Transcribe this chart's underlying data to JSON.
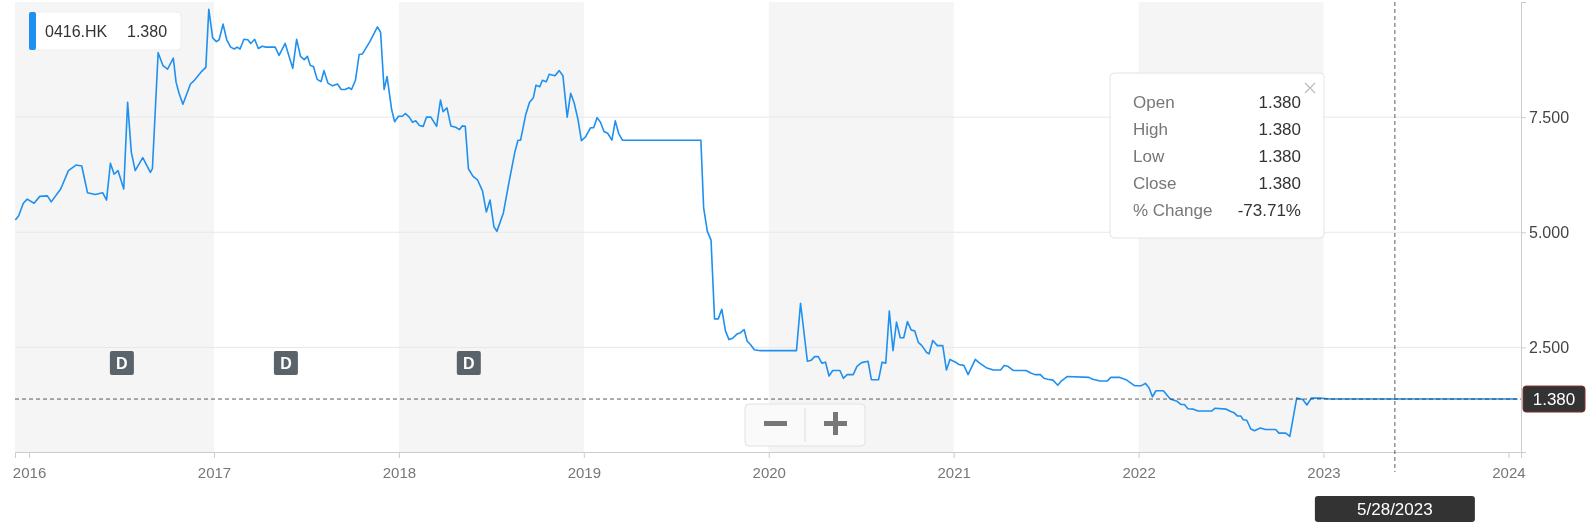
{
  "chart_data": {
    "type": "line",
    "xlim": [
      2015.924,
      2024.068
    ],
    "xticks": [
      2016,
      2017,
      2018,
      2019,
      2020,
      2021,
      2022,
      2023,
      2024
    ],
    "ylim": [
      0.23,
      10.0
    ],
    "yticks": [
      {
        "value": 2.5,
        "label": "2.500"
      },
      {
        "value": 5,
        "label": "5.000"
      },
      {
        "value": 7.5,
        "label": "7.500"
      }
    ],
    "grid": "y",
    "legend": "top left",
    "marker": "none",
    "line_style": "solid",
    "series": [
      {
        "name": "0416.HK",
        "color": "#1e90f0",
        "x": [
          2015.928,
          2015.944,
          2015.969,
          2015.99,
          2016.027,
          2016.058,
          2016.099,
          2016.12,
          2016.171,
          2016.213,
          2016.254,
          2016.285,
          2016.316,
          2016.357,
          2016.398,
          2016.419,
          2016.44,
          2016.46,
          2016.481,
          2016.512,
          2016.533,
          2016.553,
          2016.574,
          2016.615,
          2016.656,
          2016.667,
          2016.698,
          2016.724,
          2016.749,
          2016.78,
          2016.795,
          2016.811,
          2016.832,
          2016.873,
          2016.894,
          2016.935,
          2016.956,
          2016.972,
          2016.993,
          2017.013,
          2017.028,
          2017.049,
          2017.069,
          2017.09,
          2017.11,
          2017.125,
          2017.141,
          2017.162,
          2017.183,
          2017.199,
          2017.22,
          2017.24,
          2017.261,
          2017.282,
          2017.331,
          2017.352,
          2017.385,
          2017.406,
          2017.426,
          2017.447,
          2017.468,
          2017.488,
          2017.505,
          2017.521,
          2017.538,
          2017.558,
          2017.579,
          2017.595,
          2017.616,
          2017.641,
          2017.668,
          2017.688,
          2017.709,
          2017.73,
          2017.744,
          2017.765,
          2017.785,
          2017.802,
          2017.843,
          2017.884,
          2017.901,
          2017.92,
          2017.936,
          2017.961,
          2017.977,
          2017.998,
          2018.019,
          2018.035,
          2018.056,
          2018.074,
          2018.091,
          2018.111,
          2018.132,
          2018.149,
          2018.173,
          2018.204,
          2018.225,
          2018.239,
          2018.26,
          2018.281,
          2018.307,
          2018.328,
          2018.343,
          2018.359,
          2018.376,
          2018.4,
          2018.425,
          2018.452,
          2018.473,
          2018.493,
          2018.514,
          2018.53,
          2018.565,
          2018.596,
          2018.627,
          2018.644,
          2018.658,
          2018.685,
          2018.706,
          2018.727,
          2018.741,
          2018.762,
          2018.776,
          2018.797,
          2018.813,
          2018.844,
          2018.867,
          2018.887,
          2018.91,
          2018.929,
          2018.947,
          2018.968,
          2018.987,
          2019.009,
          2019.037,
          2019.053,
          2019.072,
          2019.09,
          2019.109,
          2019.129,
          2019.152,
          2019.17,
          2019.188,
          2019.209,
          2019.633,
          2019.648,
          2019.668,
          2019.688,
          2019.707,
          2019.727,
          2019.746,
          2019.766,
          2019.785,
          2019.805,
          2019.828,
          2019.848,
          2019.867,
          2019.883,
          2019.902,
          2019.922,
          2019.955,
          2020.15,
          2020.172,
          2020.209,
          2020.229,
          2020.248,
          2020.268,
          2020.287,
          2020.307,
          2020.326,
          2020.346,
          2020.385,
          2020.404,
          2020.424,
          2020.457,
          2020.477,
          2020.502,
          2020.537,
          2020.555,
          2020.594,
          2020.613,
          2020.633,
          2020.652,
          2020.672,
          2020.691,
          2020.711,
          2020.73,
          2020.75,
          2020.77,
          2020.789,
          2020.809,
          2020.828,
          2020.854,
          2020.867,
          2020.887,
          2020.912,
          2020.941,
          2020.961,
          2020.98,
          2021.01,
          2021.029,
          2021.055,
          2021.078,
          2021.117,
          2021.137,
          2021.176,
          2021.215,
          2021.254,
          2021.273,
          2021.293,
          2021.322,
          2021.391,
          2021.42,
          2021.439,
          2021.469,
          2021.488,
          2021.508,
          2021.537,
          2021.563,
          2021.582,
          2021.615,
          2021.732,
          2021.752,
          2021.791,
          2021.83,
          2021.85,
          2021.898,
          2021.932,
          2021.978,
          2022.015,
          2022.037,
          2022.057,
          2022.075,
          2022.094,
          2022.134,
          2022.171,
          2022.208,
          2022.23,
          2022.248,
          2022.267,
          2022.296,
          2022.322,
          2022.395,
          2022.414,
          2022.474,
          2022.498,
          2022.517,
          2022.535,
          2022.553,
          2022.566,
          2022.585,
          2022.607,
          2022.627,
          2022.658,
          2022.686,
          2022.741,
          2022.759,
          2022.796,
          2022.818,
          2022.855,
          2022.888,
          2022.91,
          2022.934,
          2022.98,
          2023.035,
          2024.046
        ],
        "values": [
          5.28,
          5.36,
          5.63,
          5.72,
          5.63,
          5.78,
          5.79,
          5.66,
          5.94,
          6.34,
          6.46,
          6.44,
          5.86,
          5.82,
          5.86,
          5.7,
          6.5,
          6.26,
          6.34,
          5.94,
          7.82,
          6.74,
          6.34,
          6.62,
          6.3,
          6.38,
          8.9,
          8.62,
          8.54,
          8.78,
          8.26,
          8.02,
          7.78,
          8.22,
          8.3,
          8.5,
          8.58,
          9.84,
          9.22,
          9.14,
          9.18,
          9.52,
          9.18,
          9.02,
          8.98,
          9.02,
          8.98,
          9.19,
          9.18,
          9.1,
          9.19,
          8.99,
          9.04,
          9.02,
          9.02,
          8.84,
          9.1,
          8.82,
          8.56,
          9.19,
          8.82,
          8.75,
          8.82,
          8.62,
          8.6,
          8.32,
          8.27,
          8.51,
          8.24,
          8.18,
          8.22,
          8.1,
          8.1,
          8.14,
          8.1,
          8.3,
          8.86,
          8.87,
          9.14,
          9.46,
          9.34,
          8.1,
          8.38,
          7.66,
          7.4,
          7.52,
          7.52,
          7.58,
          7.5,
          7.39,
          7.42,
          7.32,
          7.3,
          7.5,
          7.5,
          7.3,
          7.87,
          7.62,
          7.7,
          7.31,
          7.28,
          7.23,
          7.31,
          7.3,
          6.38,
          6.22,
          6.14,
          5.9,
          5.44,
          5.7,
          5.12,
          5.02,
          5.42,
          6.1,
          6.74,
          7.0,
          7.0,
          7.54,
          7.82,
          7.92,
          8.19,
          8.16,
          8.3,
          8.27,
          8.43,
          8.4,
          8.51,
          8.4,
          7.5,
          8.02,
          7.82,
          7.46,
          6.99,
          7.07,
          7.27,
          7.27,
          7.49,
          7.39,
          7.19,
          7.15,
          7.0,
          7.42,
          7.15,
          7.0,
          7.0,
          5.53,
          5.02,
          4.83,
          3.12,
          3.12,
          3.33,
          2.86,
          2.67,
          2.7,
          2.79,
          2.82,
          2.89,
          2.64,
          2.56,
          2.45,
          2.43,
          2.43,
          3.46,
          2.2,
          2.22,
          2.3,
          2.3,
          2.16,
          2.18,
          1.88,
          2.0,
          2.0,
          1.83,
          1.91,
          1.91,
          2.09,
          2.17,
          2.2,
          1.8,
          1.8,
          2.18,
          2.16,
          3.29,
          2.43,
          3.05,
          2.71,
          2.71,
          3.06,
          2.88,
          2.86,
          2.61,
          2.54,
          2.39,
          2.36,
          2.65,
          2.54,
          2.54,
          2.01,
          2.24,
          2.18,
          2.13,
          2.11,
          1.91,
          2.24,
          2.17,
          2.06,
          2.01,
          2.01,
          2.11,
          2.09,
          2.0,
          2.0,
          1.94,
          1.91,
          1.91,
          1.83,
          1.81,
          1.79,
          1.68,
          1.77,
          1.87,
          1.85,
          1.81,
          1.77,
          1.77,
          1.85,
          1.85,
          1.8,
          1.67,
          1.67,
          1.72,
          1.62,
          1.43,
          1.56,
          1.56,
          1.38,
          1.33,
          1.26,
          1.26,
          1.17,
          1.16,
          1.12,
          1.12,
          1.18,
          1.16,
          1.11,
          1.08,
          1.01,
          1.01,
          0.93,
          0.92,
          0.73,
          0.69,
          0.75,
          0.72,
          0.72,
          0.64,
          0.64,
          0.57,
          1.4,
          1.37,
          1.25,
          1.4,
          1.4,
          1.38,
          1.38
        ]
      }
    ],
    "ref_lines": [
      {
        "axis": "y",
        "value": 1.38,
        "label": "1.380",
        "line_style": "dashed",
        "color": "#333333"
      },
      {
        "axis": "x",
        "value": 2023.386,
        "label": "5/28/2023",
        "line_style": "dashed",
        "color": "#333333"
      }
    ],
    "bands": [
      {
        "axis": "x",
        "from": 2015.924,
        "to": 2017,
        "color": "#f5f5f5"
      },
      {
        "axis": "x",
        "from": 2018,
        "to": 2019,
        "color": "#f5f5f5"
      },
      {
        "axis": "x",
        "from": 2020,
        "to": 2021,
        "color": "#f5f5f5"
      },
      {
        "axis": "x",
        "from": 2022,
        "to": 2023,
        "color": "#f5f5f5"
      }
    ],
    "annotations": [
      "1.380",
      "Open",
      "1.380",
      "High",
      "1.380",
      "Low",
      "1.380",
      "Close",
      "1.380",
      "% Change",
      "-73.71%",
      {
        "text": "D",
        "x": 2016.502
      },
      {
        "text": "D",
        "x": 2017.389
      },
      {
        "text": "D",
        "x": 2018.378
      }
    ]
  }
}
